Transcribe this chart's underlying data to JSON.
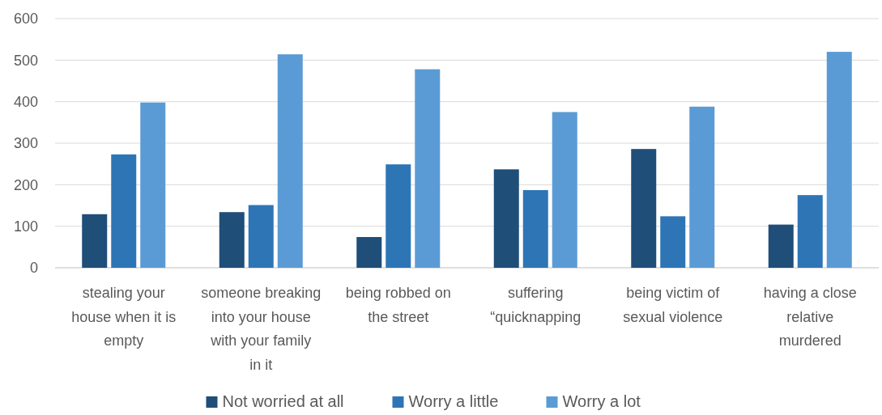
{
  "chart_data": {
    "type": "bar",
    "categories": [
      "stealing your house when it is empty",
      "someone breaking into your house with your family in it",
      "being robbed on the street",
      "suffering “quicknapping",
      "being victim of sexual violence",
      "having a close relative murdered"
    ],
    "series": [
      {
        "name": "Not worried at all",
        "color": "#1f4e79",
        "values": [
          129,
          134,
          74,
          237,
          286,
          104
        ]
      },
      {
        "name": "Worry a little",
        "color": "#2e75b6",
        "values": [
          273,
          151,
          249,
          187,
          124,
          175
        ]
      },
      {
        "name": "Worry a lot",
        "color": "#5b9bd5",
        "values": [
          398,
          514,
          478,
          375,
          388,
          520
        ]
      }
    ],
    "ylim": [
      0,
      600
    ],
    "yticks": [
      0,
      100,
      200,
      300,
      400,
      500,
      600
    ],
    "grid": "y",
    "legend": "bottom"
  }
}
